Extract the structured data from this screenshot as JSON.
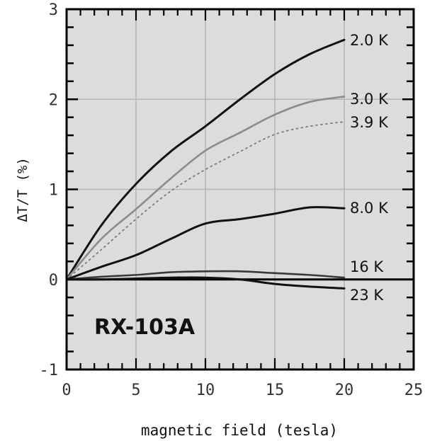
{
  "chart_data": {
    "type": "line",
    "title": "",
    "xlabel": "magnetic field (tesla)",
    "ylabel": "ΔT/T (%)",
    "xlim": [
      0,
      25
    ],
    "ylim": [
      -1,
      3
    ],
    "xticks": [
      0,
      5,
      10,
      15,
      20,
      25
    ],
    "xtick_labels": [
      "0",
      "5",
      "10",
      "15",
      "20",
      "25"
    ],
    "yticks": [
      -1,
      0,
      1,
      2,
      3
    ],
    "ytick_labels": [
      "-1",
      "0",
      "1",
      "2",
      "3"
    ],
    "grid": true,
    "annotation": "RX-103A",
    "x": [
      0,
      2.5,
      5,
      7.5,
      10,
      12.5,
      15,
      17.5,
      20
    ],
    "series": [
      {
        "name": "2.0 K",
        "values": [
          0,
          0.6,
          1.06,
          1.42,
          1.7,
          2.0,
          2.28,
          2.5,
          2.66
        ],
        "style": "solid-dark"
      },
      {
        "name": "3.0 K",
        "values": [
          0,
          0.45,
          0.78,
          1.12,
          1.43,
          1.63,
          1.83,
          1.97,
          2.03
        ],
        "style": "gray"
      },
      {
        "name": "3.9 K",
        "values": [
          0,
          0.33,
          0.67,
          0.98,
          1.22,
          1.42,
          1.61,
          1.7,
          1.75
        ],
        "style": "dotted"
      },
      {
        "name": "8.0 K",
        "values": [
          0,
          0.14,
          0.27,
          0.45,
          0.62,
          0.67,
          0.73,
          0.8,
          0.79
        ],
        "style": "solid-dark"
      },
      {
        "name": "16 K",
        "values": [
          0,
          0.03,
          0.05,
          0.08,
          0.09,
          0.09,
          0.07,
          0.05,
          0.02
        ],
        "style": "solid-mid"
      },
      {
        "name": "23 K",
        "values": [
          0,
          0.0,
          0.01,
          0.02,
          0.02,
          0.0,
          -0.05,
          -0.08,
          -0.1
        ],
        "style": "solid-dark"
      }
    ]
  },
  "colors": {
    "plot_background": "#dcdcdc",
    "frame": "#000000",
    "grid": "#b4b4b4"
  }
}
